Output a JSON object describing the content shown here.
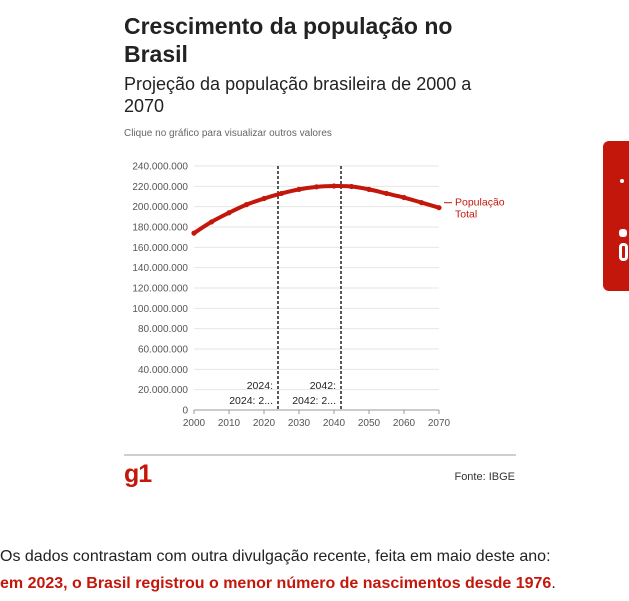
{
  "card": {
    "title": "Crescimento da população no Brasil",
    "subtitle": "Projeção da população brasileira de 2000 a 2070",
    "hint": "Clique no gráfico para visualizar outros valores",
    "logo": "g1",
    "source": "Fonte: IBGE"
  },
  "article": {
    "line1": "Os dados contrastam com outra divulgação recente, feita em maio deste ano:",
    "line2_bold": "em 2023, o Brasil registrou o menor número de nascimentos desde 1976",
    "line2_tail": "."
  },
  "side_tab": {
    "icon": "share-icon"
  },
  "colors": {
    "accent": "#c4170c",
    "grid": "#e6e6e6",
    "text": "#222222"
  },
  "chart_data": {
    "type": "line",
    "title": "Crescimento da população no Brasil",
    "subtitle": "Projeção da população brasileira de 2000 a 2070",
    "xlim": [
      2000,
      2070
    ],
    "ylim": [
      0,
      240000000
    ],
    "x_ticks": [
      "2000",
      "2010",
      "2020",
      "2030",
      "2040",
      "2050",
      "2060",
      "2070"
    ],
    "y_ticks": [
      "0",
      "20.000.000",
      "40.000.000",
      "60.000.000",
      "80.000.000",
      "100.000.000",
      "120.000.000",
      "140.000.000",
      "160.000.000",
      "180.000.000",
      "200.000.000",
      "220.000.000",
      "240.000.000"
    ],
    "grid": true,
    "series": [
      {
        "name": "População Total",
        "label_lines": [
          "População",
          "Total"
        ],
        "color": "#c4170c",
        "x": [
          2000,
          2005,
          2010,
          2015,
          2020,
          2025,
          2030,
          2035,
          2040,
          2045,
          2050,
          2055,
          2060,
          2065,
          2070
        ],
        "values": [
          174000000,
          185000000,
          194000000,
          202000000,
          208000000,
          213000000,
          217000000,
          219500000,
          220300000,
          219800000,
          217000000,
          213000000,
          209000000,
          204000000,
          199000000
        ]
      }
    ],
    "annotations": [
      {
        "x": 2024,
        "line1": "2024:",
        "line2": "2024: 2..."
      },
      {
        "x": 2042,
        "line1": "2042:",
        "line2": "2042: 2..."
      }
    ]
  }
}
